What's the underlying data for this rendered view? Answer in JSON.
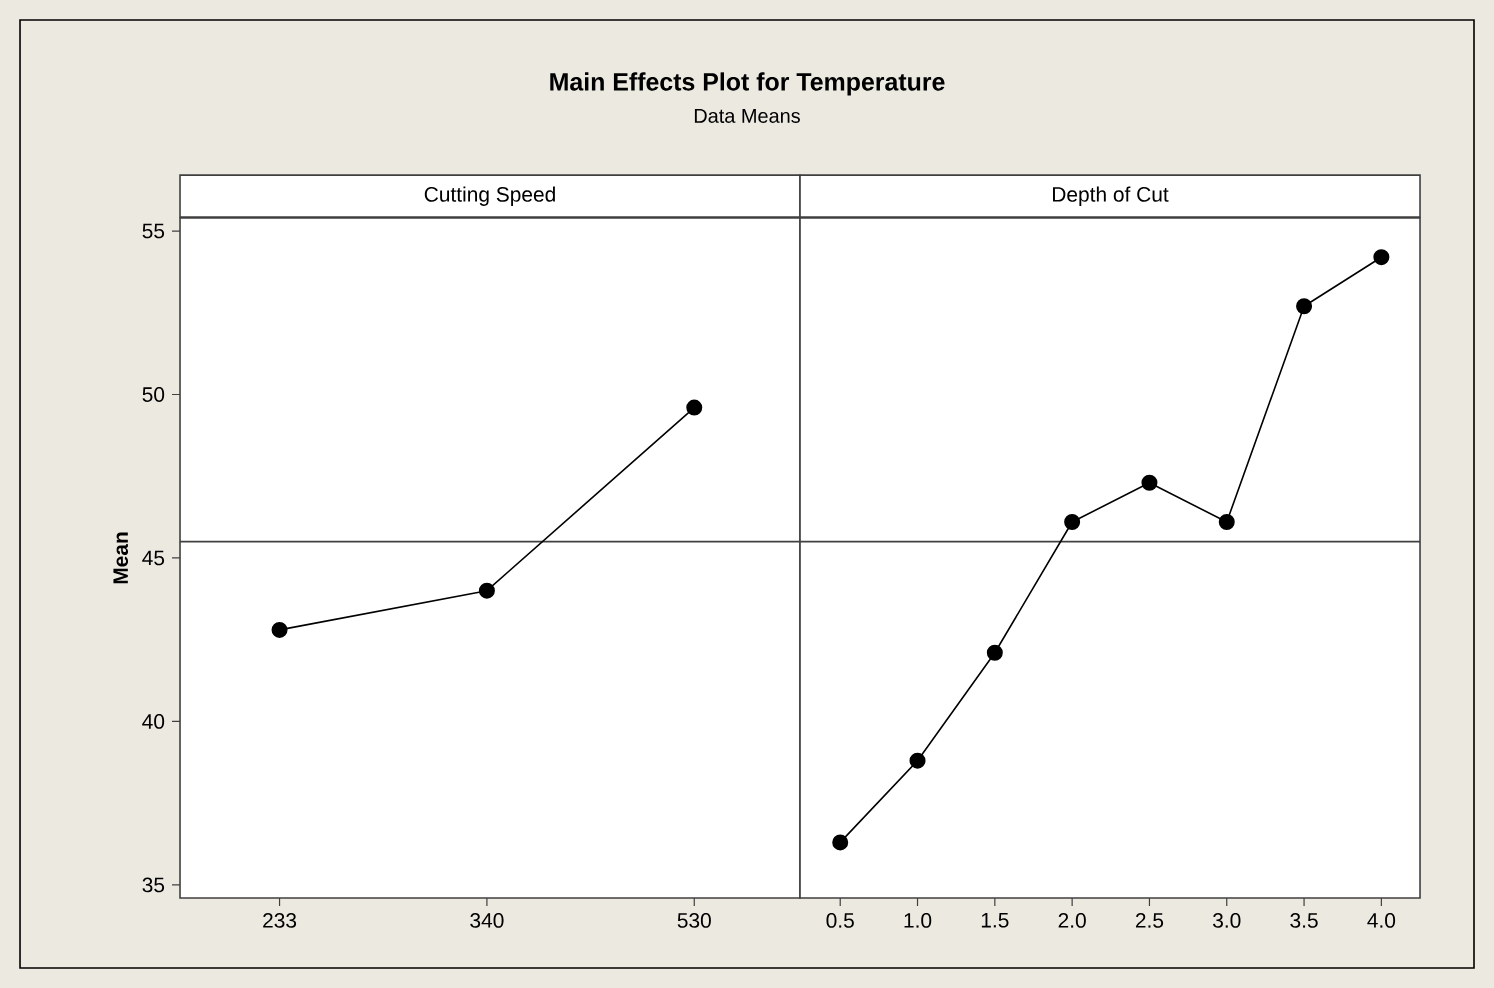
{
  "chart_data": [
    {
      "type": "line",
      "title": "Main Effects Plot for Temperature",
      "subtitle": "Data Means",
      "xlabel": "Cutting Speed",
      "ylabel": "Mean",
      "categories": [
        "233",
        "340",
        "530"
      ],
      "series": [
        {
          "color": "#000000",
          "values": [
            42.8,
            44.0,
            49.6
          ]
        }
      ],
      "ylim": [
        34.6,
        55.4
      ],
      "yticks": [
        35,
        40,
        45,
        50,
        55
      ],
      "marker": "circle",
      "line_style": "solid",
      "ref_lines": [
        {
          "axis": "y",
          "value": 45.5,
          "color": "#404040"
        }
      ]
    },
    {
      "type": "line",
      "xlabel": "Depth of Cut",
      "categories": [
        "0.5",
        "1.0",
        "1.5",
        "2.0",
        "2.5",
        "3.0",
        "3.5",
        "4.0"
      ],
      "series": [
        {
          "color": "#000000",
          "values": [
            36.3,
            38.8,
            42.1,
            46.1,
            47.3,
            46.1,
            52.7,
            54.2
          ]
        }
      ],
      "ylim": [
        34.6,
        55.4
      ],
      "tick_labels": "x",
      "marker": "circle",
      "line_style": "solid",
      "ref_lines": [
        {
          "axis": "y",
          "value": 45.5,
          "color": "#404040"
        }
      ]
    }
  ]
}
